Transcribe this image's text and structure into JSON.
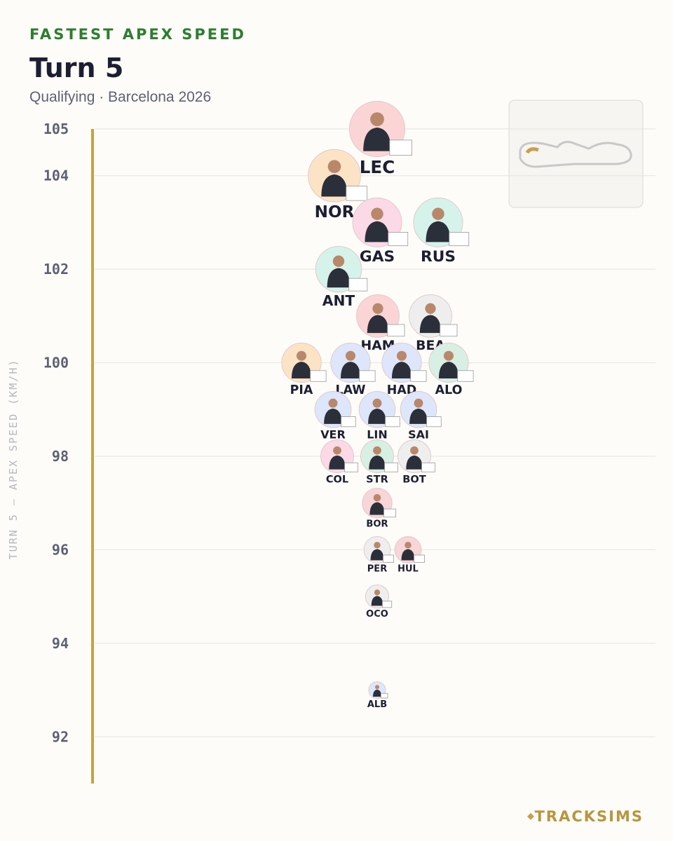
{
  "chart_data": {
    "type": "beeswarm",
    "kicker": "FASTEST APEX SPEED",
    "title": "Turn 5",
    "subtitle": "Qualifying · Barcelona 2026",
    "y_label": "TURN 5 — APEX SPEED (KM/H)",
    "brand": "TRACKSIMS",
    "categories": [
      "LEC",
      "NOR",
      "GAS",
      "RUS",
      "ANT",
      "HAM",
      "BEA",
      "PIA",
      "LAW",
      "HAD",
      "ALO",
      "VER",
      "LIN",
      "SAI",
      "COL",
      "STR",
      "BOT",
      "BOR",
      "PER",
      "HUL",
      "OCO",
      "ALB"
    ],
    "values": [
      105,
      104,
      103,
      103,
      102,
      101,
      101,
      100,
      100,
      100,
      100,
      99,
      99,
      99,
      98,
      98,
      98,
      97,
      96,
      96,
      95,
      93
    ],
    "colors": [
      "#fbd5d5",
      "#fde3c6",
      "#fbd9e6",
      "#d5f3ea",
      "#d5f3ea",
      "#fbd5d5",
      "#eeeeee",
      "#fde3c6",
      "#dde6fb",
      "#dde6fb",
      "#d8efe3",
      "#dde6fb",
      "#dde6fb",
      "#dde6fb",
      "#fbd9e6",
      "#d8efe3",
      "#eeeeee",
      "#f8d5d8",
      "#eeeeee",
      "#f8d5d8",
      "#eeeeee",
      "#dde6fb"
    ],
    "ylim": [
      91,
      105
    ],
    "yticks": [
      92,
      94,
      96,
      98,
      100,
      102,
      104,
      105
    ],
    "grid": true
  }
}
